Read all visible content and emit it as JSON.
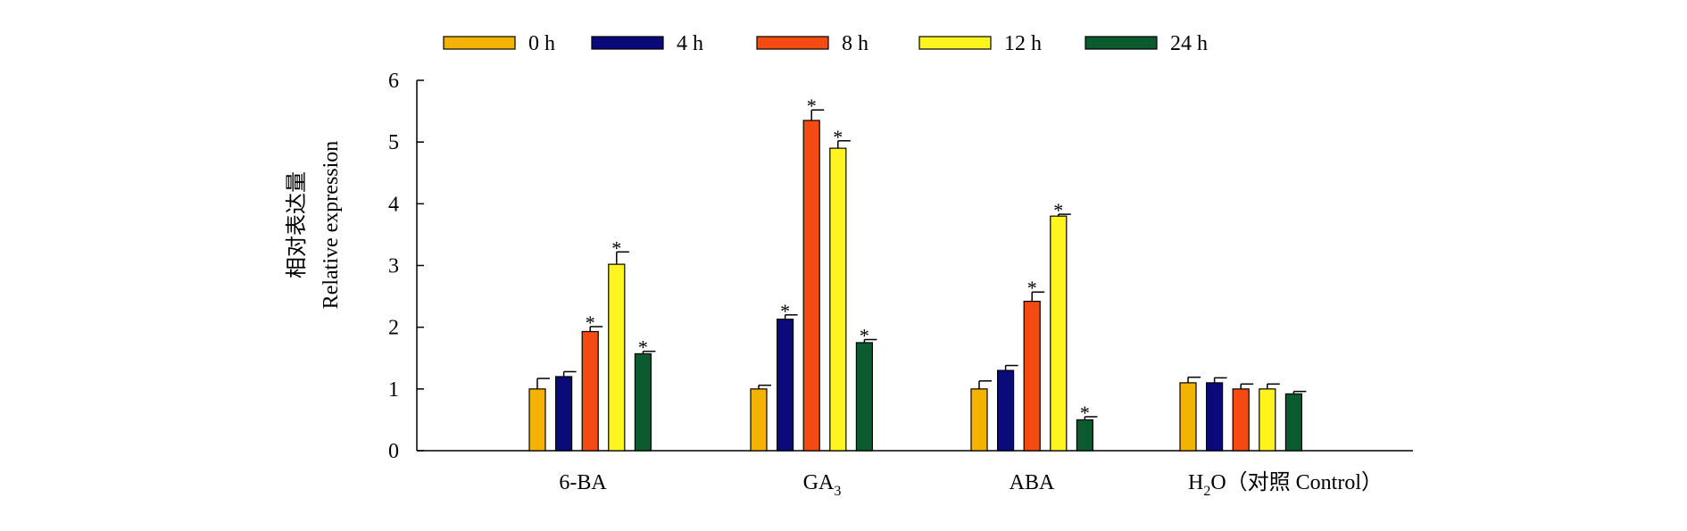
{
  "chart_data": {
    "type": "bar",
    "ylabel_zh": "相对表达量",
    "ylabel": "Relative expression",
    "ylim": [
      0,
      6
    ],
    "yticks": [
      "0",
      "1",
      "2",
      "3",
      "4",
      "5",
      "6"
    ],
    "legend_position": "top",
    "categories": [
      {
        "main": "6-BA",
        "sub": "",
        "tail": ""
      },
      {
        "main": "GA",
        "sub": "3",
        "tail": ""
      },
      {
        "main": "ABA",
        "sub": "",
        "tail": ""
      },
      {
        "main": "H",
        "sub": "2",
        "tail": "O（对照 Control）"
      }
    ],
    "series": [
      {
        "name": "0 h",
        "color": "#F5B301",
        "values": [
          1.0,
          1.0,
          1.0,
          1.1
        ],
        "errors": [
          0.17,
          0.06,
          0.13,
          0.09
        ],
        "significant": [
          false,
          false,
          false,
          false
        ]
      },
      {
        "name": "4 h",
        "color": "#0A0A7A",
        "values": [
          1.2,
          2.13,
          1.3,
          1.1
        ],
        "errors": [
          0.08,
          0.07,
          0.08,
          0.08
        ],
        "significant": [
          false,
          true,
          false,
          false
        ]
      },
      {
        "name": "8 h",
        "color": "#F54B12",
        "values": [
          1.93,
          5.35,
          2.42,
          1.0
        ],
        "errors": [
          0.08,
          0.17,
          0.15,
          0.08
        ],
        "significant": [
          true,
          true,
          true,
          false
        ]
      },
      {
        "name": "12 h",
        "color": "#FFF51E",
        "values": [
          3.02,
          4.9,
          3.8,
          1.0
        ],
        "errors": [
          0.2,
          0.12,
          0.03,
          0.08
        ],
        "significant": [
          true,
          true,
          true,
          false
        ]
      },
      {
        "name": "24 h",
        "color": "#0C5A2F",
        "values": [
          1.57,
          1.75,
          0.5,
          0.92
        ],
        "errors": [
          0.04,
          0.05,
          0.05,
          0.04
        ],
        "significant": [
          true,
          true,
          true,
          false
        ]
      }
    ],
    "significance_marker": "*"
  }
}
